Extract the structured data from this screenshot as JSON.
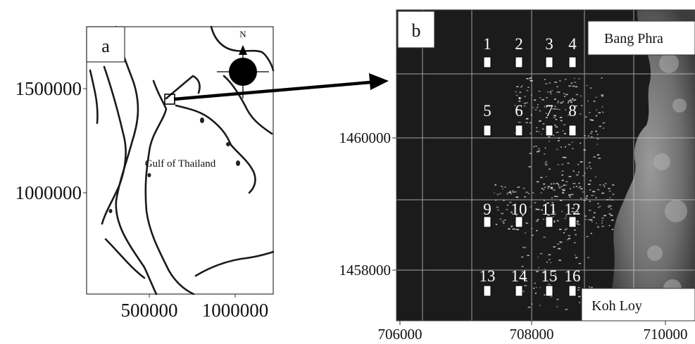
{
  "panel_a": {
    "label": "a",
    "y_ticks": [
      "1500000",
      "1000000"
    ],
    "x_ticks": [
      "500000",
      "1000000"
    ],
    "gulf_label": "Gulf of Thailand",
    "north_label": "N"
  },
  "panel_b": {
    "label": "b",
    "y_ticks": [
      "1460000",
      "1458000"
    ],
    "x_ticks": [
      "706000",
      "708000",
      "710000"
    ],
    "place_top": "Bang Phra",
    "place_bottom": "Koh Loy",
    "stations": [
      {
        "id": "1"
      },
      {
        "id": "2"
      },
      {
        "id": "3"
      },
      {
        "id": "4"
      },
      {
        "id": "5"
      },
      {
        "id": "6"
      },
      {
        "id": "7"
      },
      {
        "id": "8"
      },
      {
        "id": "9"
      },
      {
        "id": "10"
      },
      {
        "id": "11"
      },
      {
        "id": "12"
      },
      {
        "id": "13"
      },
      {
        "id": "14"
      },
      {
        "id": "15"
      },
      {
        "id": "16"
      }
    ]
  }
}
